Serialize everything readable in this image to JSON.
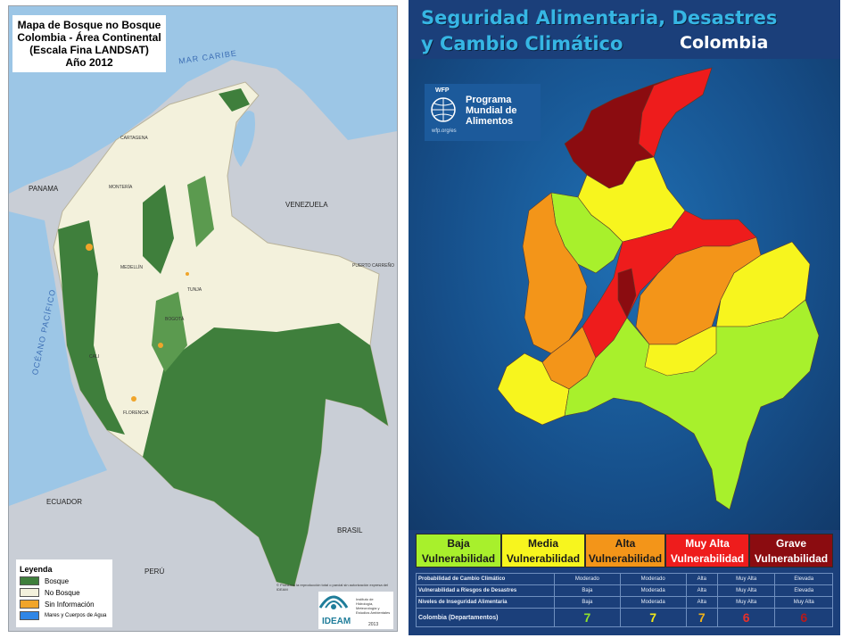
{
  "left_map": {
    "title_lines": [
      "Mapa de Bosque no Bosque",
      "Colombia - Área Continental",
      "(Escala Fina LANDSAT)",
      "Año 2012"
    ],
    "sea_labels": {
      "caribe": "MAR CARIBE",
      "pacifico": "OCÉANO PACÍFICO"
    },
    "country_labels": {
      "panama": "PANAMA",
      "venezuela": "VENEZUELA",
      "ecuador": "ECUADOR",
      "peru": "PERÚ",
      "brasil": "BRASIL"
    },
    "city_labels": [
      "CARTAGENA",
      "MONTERÍA",
      "MEDELLÍN",
      "TUNJA",
      "BOGOTÁ",
      "CALI",
      "FLORENCIA",
      "PUERTO CARREÑO"
    ],
    "legend": {
      "title": "Leyenda",
      "items": [
        {
          "label": "Bosque",
          "color": "#3f7f3c"
        },
        {
          "label": "No Bosque",
          "color": "#f3f1dc"
        },
        {
          "label": "Sin Información",
          "color": "#f0a52a"
        },
        {
          "label": "Mares y Cuerpos de Agua",
          "color": "#2f86e6"
        }
      ]
    },
    "logo": {
      "name": "IDEAM",
      "subtitle": "Instituto de Hidrología, Meteorología y Estudios Ambientales",
      "year": "2013",
      "icon": "ideam-logo-icon"
    },
    "footnote": "© Prohibida la reproducción total o parcial sin autorización expresa del IDEAM",
    "colors": {
      "sea": "#6fa9d6",
      "land_other": "#c9ced6",
      "forest": "#3f7f3c",
      "nonforest": "#f3f1dc",
      "noinfo": "#f0a52a"
    }
  },
  "right_map": {
    "title_line1": "Seguridad Alimentaria, Desastres",
    "title_line2": "y Cambio Climático",
    "country": "Colombia",
    "wfp_logo": {
      "tag": "WFP",
      "name_lines": [
        "Programa",
        "Mundial de",
        "Alimentos"
      ],
      "url": "wfp.org/es",
      "icon": "wfp-globe-icon"
    },
    "categories": [
      {
        "line1": "Baja",
        "line2": "Vulnerabilidad",
        "color": "#a8f02c"
      },
      {
        "line1": "Media",
        "line2": "Vulnerabilidad",
        "color": "#f7f51e"
      },
      {
        "line1": "Alta",
        "line2": "Vulnerabilidad",
        "color": "#f39519"
      },
      {
        "line1": "Muy Alta",
        "line2": "Vulnerabilidad",
        "color": "#ee1c1c"
      },
      {
        "line1": "Grave",
        "line2": "Vulnerabilidad",
        "color": "#8b0c10"
      }
    ],
    "table": {
      "rows": [
        {
          "label": "Probabilidad de Cambio Climático",
          "values": [
            "Moderado",
            "Moderado",
            "Alta",
            "Muy Alta",
            "Elevada"
          ]
        },
        {
          "label": "Vulnerabilidad a Riesgos de Desastres",
          "values": [
            "Baja",
            "Moderada",
            "Alta",
            "Muy Alta",
            "Elevada"
          ]
        },
        {
          "label": "Niveles de Inseguridad Alimentaria",
          "values": [
            "Baja",
            "Moderada",
            "Alta",
            "Muy Alta",
            "Muy Alta"
          ]
        }
      ],
      "total": {
        "label": "Colombia (Departamentos)",
        "values": [
          "7",
          "7",
          "7",
          "6",
          "6"
        ],
        "colors": [
          "#8fe32a",
          "#f2e81a",
          "#f0b21a",
          "#e8302a",
          "#b81a1a"
        ]
      }
    }
  }
}
